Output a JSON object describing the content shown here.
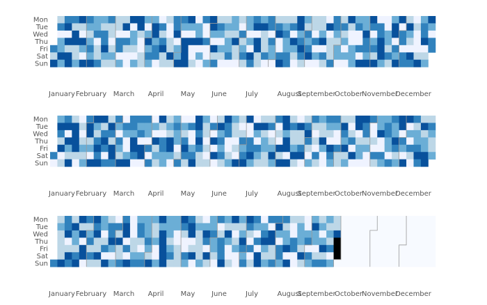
{
  "chart_data": [
    {
      "type": "heatmap",
      "first_weekday_row": 4,
      "day_count": 365,
      "empty_days_from": null,
      "day_labels": [
        "Mon",
        "Tue",
        "Wed",
        "Thu",
        "Fri",
        "Sat",
        "Sun"
      ],
      "month_labels": [
        "January",
        "February",
        "March",
        "April",
        "May",
        "June",
        "July",
        "August",
        "September",
        "October",
        "November",
        "December"
      ],
      "values": [
        3,
        1,
        4,
        1,
        3,
        0,
        2,
        2,
        4,
        2,
        3,
        4,
        0,
        4,
        1,
        4,
        4,
        3,
        1,
        4,
        4,
        1,
        1,
        2,
        4,
        1,
        0,
        4,
        2,
        0,
        4,
        3,
        2,
        1,
        2,
        3,
        2,
        4,
        2,
        2,
        3,
        0,
        1,
        1,
        3,
        2,
        1,
        3,
        3,
        4,
        2,
        1,
        3,
        1,
        1,
        0,
        1,
        2,
        1,
        1,
        1,
        0,
        3,
        3,
        0,
        2,
        1,
        4,
        0,
        3,
        1,
        0,
        0,
        4,
        0,
        2,
        2,
        1,
        0,
        2,
        4,
        4,
        1,
        0,
        0,
        1,
        1,
        2,
        0,
        2,
        4,
        2,
        3,
        2,
        2,
        4,
        4,
        2,
        3,
        3,
        0,
        0,
        3,
        1,
        3,
        4,
        1,
        1,
        1,
        0,
        0,
        1,
        1,
        4,
        1,
        3,
        3,
        4,
        0,
        2,
        2,
        4,
        3,
        2,
        0,
        4,
        4,
        4,
        4,
        4,
        2,
        0,
        4,
        0,
        0,
        1,
        0,
        2,
        2,
        4,
        0,
        2,
        0,
        3,
        0,
        0,
        3,
        0,
        0,
        2,
        4,
        4,
        2,
        0,
        4,
        1,
        3,
        1,
        3,
        2,
        0,
        2,
        1,
        0,
        1,
        2,
        1,
        2,
        2,
        3,
        0,
        2,
        2,
        1,
        4,
        1,
        1,
        0,
        1,
        0,
        3,
        1,
        2,
        3,
        1,
        2,
        2,
        0,
        2,
        0,
        4,
        3,
        3,
        4,
        0,
        4,
        4,
        1,
        1,
        2,
        4,
        1,
        1,
        1,
        3,
        0,
        3,
        3,
        0,
        3,
        2,
        2,
        0,
        1,
        3,
        4,
        0,
        0,
        3,
        4,
        1,
        2,
        3,
        2,
        2,
        3,
        3,
        1,
        3,
        0,
        4,
        2,
        1,
        0,
        4,
        4,
        2,
        3,
        4,
        3,
        1,
        2,
        1,
        3,
        2,
        3,
        4,
        0,
        1,
        1,
        0,
        3,
        0,
        2,
        0,
        1,
        1,
        2,
        4,
        0,
        3,
        1,
        0,
        4,
        0,
        1,
        1,
        1,
        3,
        3,
        3,
        2,
        1,
        2,
        2,
        0,
        1,
        3,
        1,
        2,
        0,
        2,
        0,
        4,
        1,
        0,
        0,
        2,
        2,
        2,
        2,
        3,
        0,
        0,
        3,
        0,
        4,
        2,
        2,
        4,
        3,
        3,
        2,
        4,
        4,
        3,
        0,
        2,
        3,
        1,
        4,
        0,
        3,
        3,
        4,
        4,
        4,
        2,
        0,
        0,
        2,
        2,
        1,
        3,
        1,
        2,
        4,
        4,
        0,
        3,
        2,
        4,
        4,
        0,
        3,
        3,
        0,
        3,
        3,
        1,
        4,
        2,
        1,
        0,
        4,
        3,
        0,
        1,
        0,
        0,
        0,
        1,
        4,
        2,
        3,
        3,
        4,
        0,
        1,
        2,
        4,
        2,
        0,
        3,
        3,
        0,
        4,
        2,
        4,
        3,
        1,
        1,
        3,
        2,
        3,
        4
      ]
    },
    {
      "type": "heatmap",
      "first_weekday_row": 5,
      "day_count": 365,
      "empty_days_from": null,
      "day_labels": [
        "Mon",
        "Tue",
        "Wed",
        "Thu",
        "Fri",
        "Sat",
        "Sun"
      ],
      "month_labels": [
        "January",
        "February",
        "March",
        "April",
        "May",
        "June",
        "July",
        "August",
        "September",
        "October",
        "November",
        "December"
      ],
      "values": [
        3,
        0,
        2,
        4,
        3,
        1,
        4,
        0,
        1,
        3,
        4,
        0,
        4,
        2,
        1,
        4,
        1,
        4,
        4,
        4,
        4,
        1,
        0,
        0,
        1,
        0,
        1,
        2,
        1,
        2,
        3,
        4,
        4,
        1,
        2,
        0,
        4,
        4,
        2,
        1,
        3,
        4,
        3,
        4,
        4,
        1,
        3,
        4,
        3,
        0,
        3,
        1,
        4,
        3,
        1,
        4,
        4,
        3,
        3,
        2,
        0,
        3,
        2,
        1,
        4,
        0,
        3,
        2,
        0,
        0,
        2,
        4,
        3,
        3,
        2,
        4,
        4,
        3,
        0,
        3,
        2,
        3,
        0,
        4,
        4,
        0,
        3,
        2,
        2,
        0,
        3,
        0,
        3,
        0,
        2,
        0,
        4,
        1,
        2,
        1,
        4,
        1,
        0,
        3,
        3,
        2,
        2,
        1,
        2,
        1,
        4,
        4,
        2,
        0,
        2,
        3,
        2,
        2,
        0,
        1,
        3,
        0,
        2,
        1,
        3,
        4,
        3,
        1,
        0,
        3,
        0,
        0,
        2,
        3,
        4,
        4,
        4,
        3,
        4,
        3,
        1,
        1,
        2,
        1,
        1,
        0,
        1,
        0,
        1,
        0,
        3,
        0,
        4,
        0,
        4,
        0,
        1,
        4,
        2,
        3,
        2,
        3,
        1,
        4,
        3,
        3,
        0,
        0,
        1,
        2,
        2,
        1,
        1,
        0,
        1,
        0,
        4,
        1,
        0,
        1,
        3,
        2,
        3,
        4,
        4,
        0,
        0,
        3,
        3,
        4,
        2,
        0,
        4,
        2,
        0,
        3,
        2,
        1,
        1,
        4,
        1,
        2,
        2,
        1,
        1,
        1,
        3,
        0,
        1,
        2,
        4,
        2,
        3,
        0,
        1,
        0,
        4,
        1,
        4,
        4,
        4,
        2,
        4,
        4,
        0,
        4,
        1,
        3,
        1,
        1,
        2,
        4,
        1,
        0,
        4,
        1,
        1,
        3,
        4,
        0,
        1,
        3,
        4,
        3,
        1,
        0,
        2,
        3,
        1,
        0,
        1,
        0,
        3,
        1,
        2,
        1,
        1,
        4,
        2,
        0,
        0,
        3,
        2,
        1,
        0,
        4,
        3,
        2,
        3,
        2,
        0,
        0,
        3,
        1,
        1,
        1,
        4,
        3,
        2,
        4,
        1,
        2,
        1,
        0,
        1,
        3,
        0,
        4,
        0,
        4,
        4,
        0,
        1,
        2,
        2,
        0,
        4,
        3,
        3,
        1,
        2,
        0,
        0,
        3,
        0,
        0,
        1,
        0,
        3,
        1,
        2,
        2,
        4,
        0,
        0,
        3,
        2,
        2,
        3,
        3,
        2,
        2,
        0,
        3,
        3,
        2,
        2,
        4,
        3,
        1,
        2,
        4,
        4,
        0,
        3,
        2,
        0,
        4,
        4,
        0,
        2,
        0,
        3,
        1,
        0,
        3,
        1,
        2,
        2,
        3,
        4,
        3,
        1,
        4,
        1,
        2,
        2,
        4,
        4,
        1,
        3,
        2,
        1,
        1,
        2,
        0,
        3,
        3,
        2,
        3,
        1,
        3,
        2,
        1,
        0,
        2
      ]
    },
    {
      "type": "heatmap",
      "first_weekday_row": 6,
      "day_count": 365,
      "empty_days_from": 273,
      "day_labels": [
        "Mon",
        "Tue",
        "Wed",
        "Thu",
        "Fri",
        "Sat",
        "Sun"
      ],
      "month_labels": [
        "January",
        "February",
        "March",
        "April",
        "May",
        "June",
        "July",
        "August",
        "September",
        "October",
        "November",
        "December"
      ],
      "values": [
        3,
        1,
        2,
        1,
        1,
        1,
        1,
        4,
        3,
        3,
        4,
        0,
        1,
        4,
        3,
        1,
        4,
        2,
        2,
        1,
        3,
        4,
        4,
        1,
        4,
        0,
        4,
        4,
        0,
        3,
        1,
        2,
        3,
        1,
        3,
        1,
        4,
        3,
        4,
        1,
        1,
        4,
        1,
        2,
        2,
        0,
        1,
        3,
        0,
        4,
        1,
        3,
        3,
        4,
        2,
        0,
        2,
        0,
        3,
        1,
        4,
        1,
        1,
        3,
        3,
        4,
        4,
        0,
        3,
        0,
        4,
        0,
        0,
        0,
        1,
        1,
        2,
        3,
        2,
        3,
        3,
        1,
        0,
        2,
        3,
        2,
        2,
        2,
        3,
        2,
        1,
        4,
        2,
        1,
        1,
        2,
        0,
        0,
        2,
        4,
        2,
        4,
        4,
        4,
        4,
        4,
        2,
        2,
        2,
        1,
        2,
        3,
        1,
        2,
        2,
        0,
        0,
        1,
        1,
        1,
        4,
        3,
        1,
        0,
        0,
        3,
        2,
        3,
        4,
        4,
        0,
        1,
        4,
        0,
        1,
        2,
        1,
        1,
        1,
        1,
        2,
        0,
        2,
        4,
        3,
        0,
        4,
        1,
        2,
        2,
        3,
        2,
        2,
        1,
        0,
        3,
        0,
        1,
        3,
        3,
        3,
        4,
        2,
        1,
        4,
        2,
        0,
        0,
        1,
        4,
        1,
        0,
        1,
        2,
        0,
        0,
        2,
        1,
        2,
        4,
        3,
        2,
        3,
        4,
        3,
        1,
        0,
        3,
        0,
        1,
        3,
        2,
        0,
        3,
        0,
        4,
        4,
        0,
        2,
        3,
        4,
        2,
        1,
        2,
        3,
        0,
        4,
        4,
        1,
        1,
        3,
        3,
        4,
        2,
        0,
        3,
        3,
        2,
        3,
        1,
        2,
        2,
        4,
        0,
        4,
        1,
        0,
        0,
        3,
        3,
        0,
        0,
        1,
        2,
        2,
        2,
        1,
        4,
        1,
        0,
        0,
        2,
        3,
        0,
        3,
        2,
        2,
        4,
        2,
        2,
        0,
        1,
        3,
        1,
        2,
        0,
        2,
        4,
        1,
        3,
        2,
        1,
        2,
        1,
        3,
        0,
        2,
        1,
        1,
        4
      ]
    }
  ],
  "colors": {
    "scale": [
      "#eff3ff",
      "#bdd7e7",
      "#6baed6",
      "#3182bd",
      "#08519c"
    ],
    "empty": "#f7faff",
    "grid_separator": "#9a9a9a",
    "label": "#555555"
  }
}
